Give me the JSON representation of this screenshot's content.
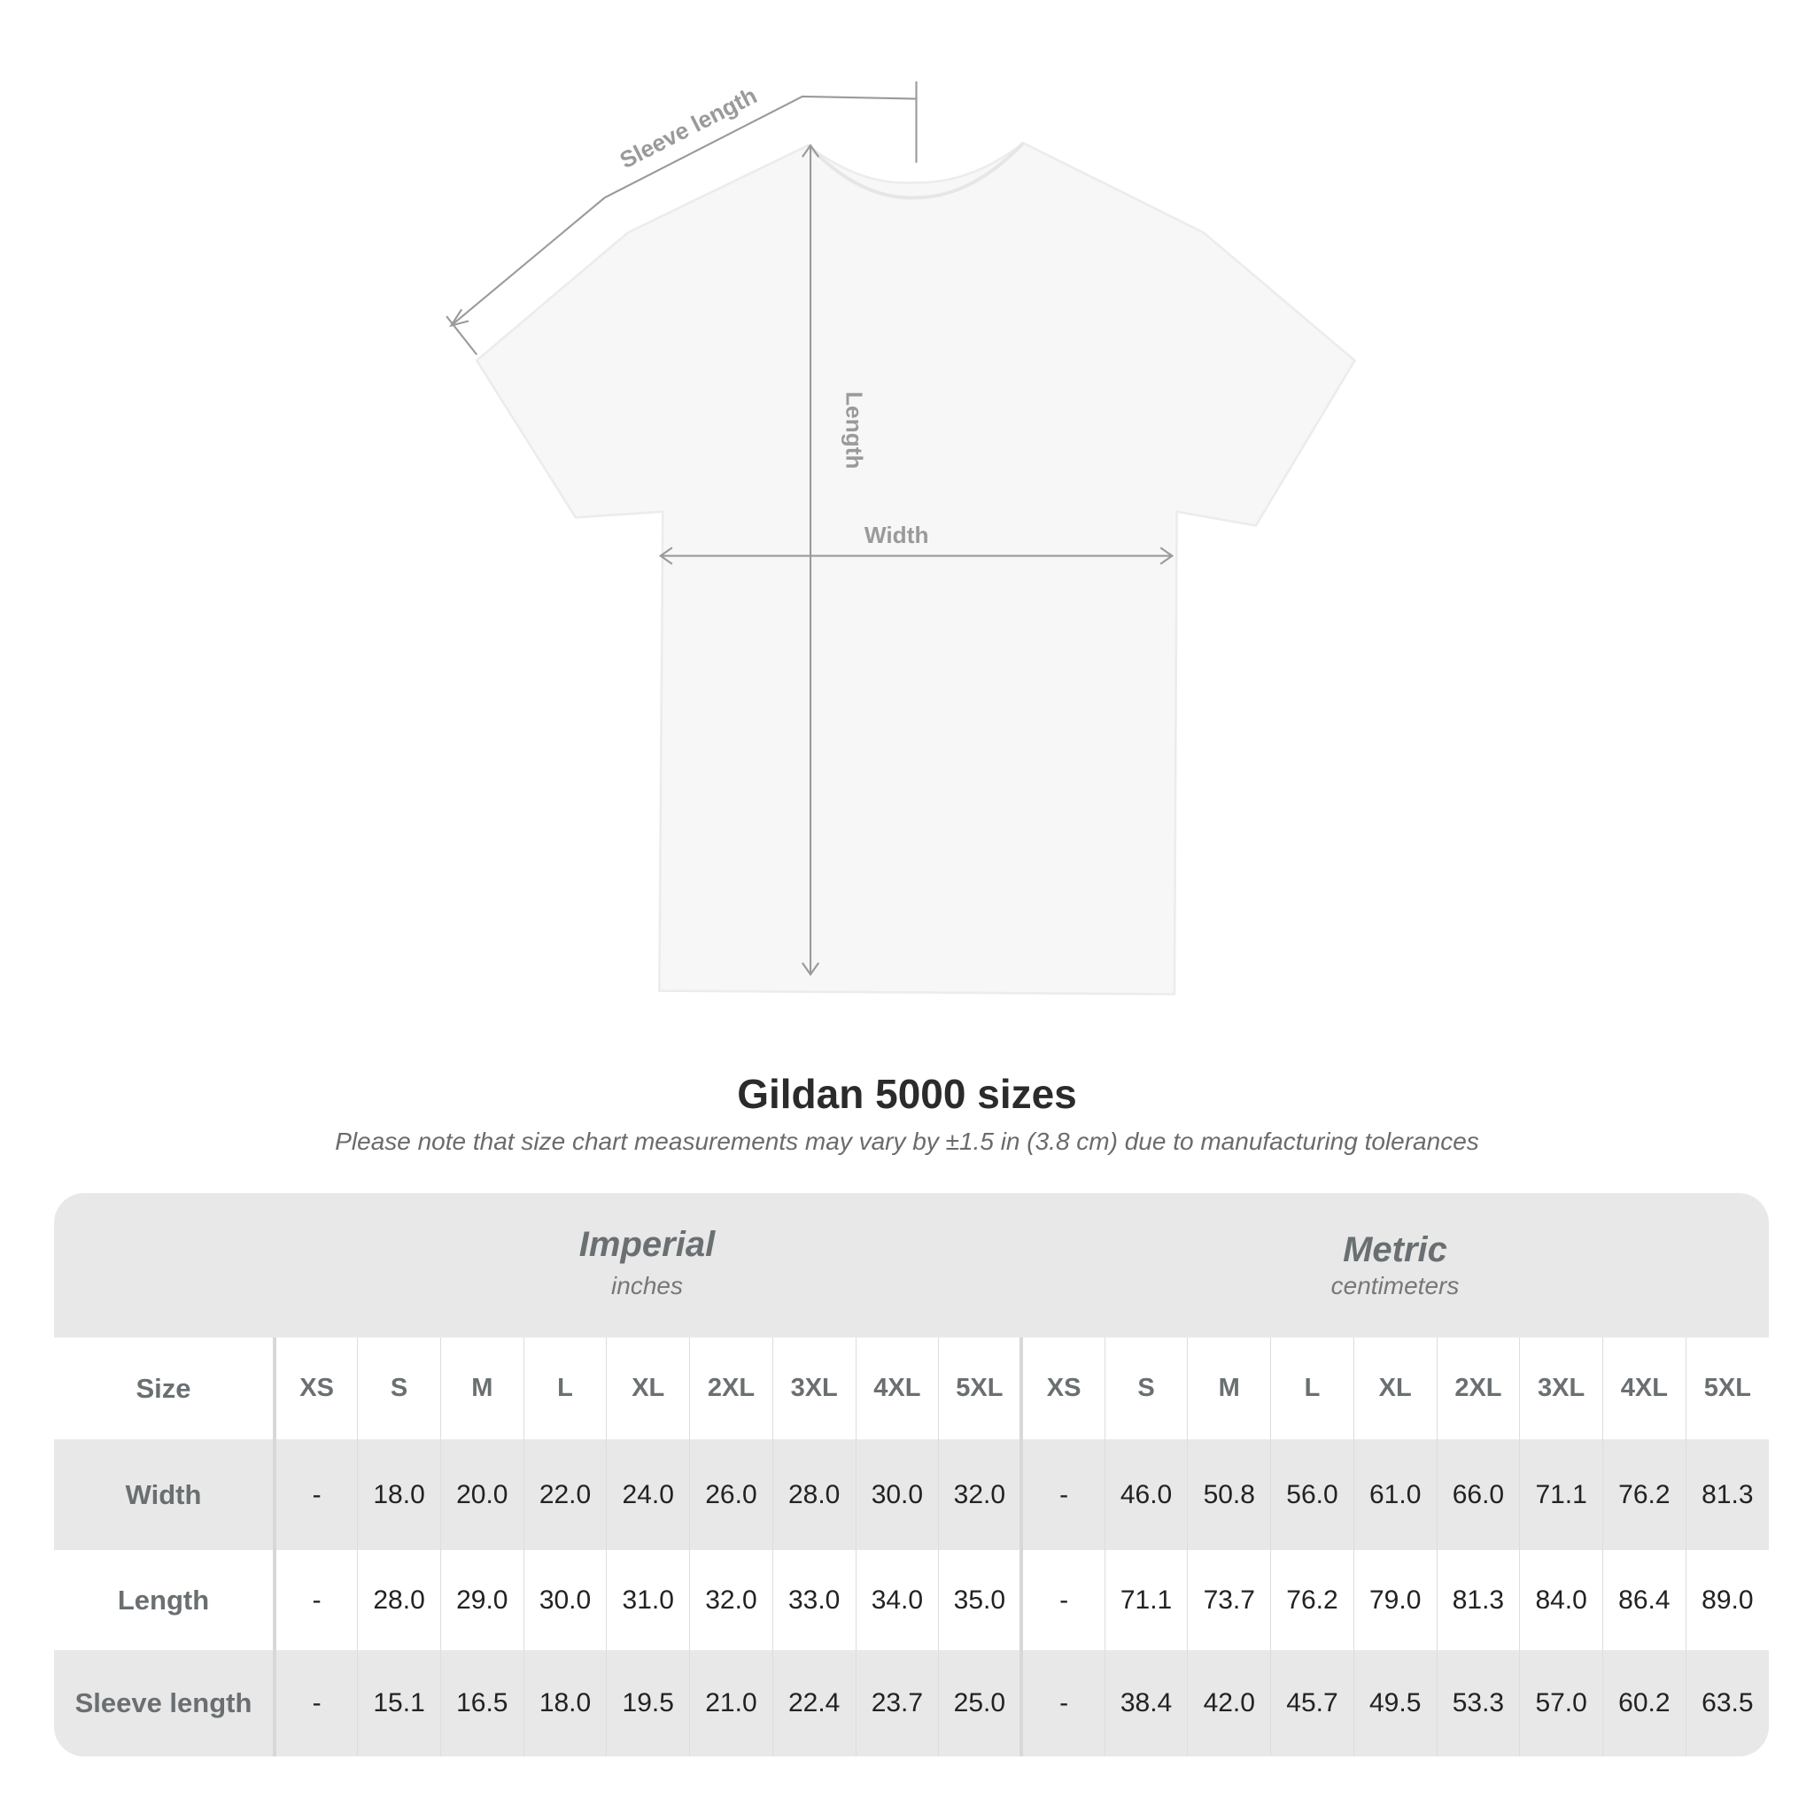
{
  "diagram": {
    "labels": {
      "sleeve": "Sleeve length",
      "length": "Length",
      "width": "Width"
    }
  },
  "title": "Gildan 5000 sizes",
  "note": "Please note that size chart measurements may vary by ±1.5 in (3.8 cm) due to manufacturing tolerances",
  "units": {
    "imperial": {
      "title": "Imperial",
      "subtitle": "inches"
    },
    "metric": {
      "title": "Metric",
      "subtitle": "centimeters"
    }
  },
  "table": {
    "size_label": "Size",
    "sizes": [
      "XS",
      "S",
      "M",
      "L",
      "XL",
      "2XL",
      "3XL",
      "4XL",
      "5XL"
    ],
    "rows": [
      {
        "label": "Width",
        "imperial": [
          "-",
          "18.0",
          "20.0",
          "22.0",
          "24.0",
          "26.0",
          "28.0",
          "30.0",
          "32.0"
        ],
        "metric": [
          "-",
          "46.0",
          "50.8",
          "56.0",
          "61.0",
          "66.0",
          "71.1",
          "76.2",
          "81.3"
        ]
      },
      {
        "label": "Length",
        "imperial": [
          "-",
          "28.0",
          "29.0",
          "30.0",
          "31.0",
          "32.0",
          "33.0",
          "34.0",
          "35.0"
        ],
        "metric": [
          "-",
          "71.1",
          "73.7",
          "76.2",
          "79.0",
          "81.3",
          "84.0",
          "86.4",
          "89.0"
        ]
      },
      {
        "label": "Sleeve length",
        "imperial": [
          "-",
          "15.1",
          "16.5",
          "18.0",
          "19.5",
          "21.0",
          "22.4",
          "23.7",
          "25.0"
        ],
        "metric": [
          "-",
          "38.4",
          "42.0",
          "45.7",
          "49.5",
          "53.3",
          "57.0",
          "60.2",
          "63.5"
        ]
      }
    ]
  },
  "colors": {
    "header_bg": "#e8e8e8",
    "label_text": "#6a6f71",
    "measure_lines": "#9a9a9a"
  }
}
